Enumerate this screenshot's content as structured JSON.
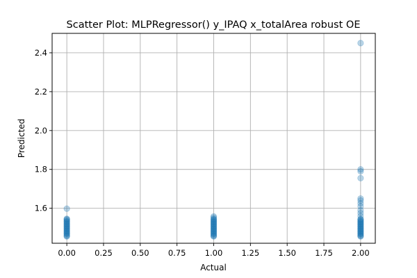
{
  "chart_data": {
    "type": "scatter",
    "title": "Scatter Plot: MLPRegressor() y_IPAQ x_totalArea robust OE",
    "xlabel": "Actual",
    "ylabel": "Predicted",
    "xlim": [
      -0.1,
      2.1
    ],
    "ylim": [
      1.42,
      2.5
    ],
    "xticks": [
      0.0,
      0.25,
      0.5,
      0.75,
      1.0,
      1.25,
      1.5,
      1.75,
      2.0
    ],
    "xtick_labels": [
      "0.00",
      "0.25",
      "0.50",
      "0.75",
      "1.00",
      "1.25",
      "1.50",
      "1.75",
      "2.00"
    ],
    "yticks": [
      1.6,
      1.8,
      2.0,
      2.2,
      2.4
    ],
    "ytick_labels": [
      "1.6",
      "1.8",
      "2.0",
      "2.2",
      "2.4"
    ],
    "grid": true,
    "marker_color": "#1f77b4",
    "marker_alpha": 0.3,
    "series": [
      {
        "points": [
          {
            "x": 0,
            "y": 1.455
          },
          {
            "x": 0,
            "y": 1.462
          },
          {
            "x": 0,
            "y": 1.468
          },
          {
            "x": 0,
            "y": 1.474
          },
          {
            "x": 0,
            "y": 1.48
          },
          {
            "x": 0,
            "y": 1.486
          },
          {
            "x": 0,
            "y": 1.492
          },
          {
            "x": 0,
            "y": 1.498
          },
          {
            "x": 0,
            "y": 1.504
          },
          {
            "x": 0,
            "y": 1.51
          },
          {
            "x": 0,
            "y": 1.516
          },
          {
            "x": 0,
            "y": 1.522
          },
          {
            "x": 0,
            "y": 1.528
          },
          {
            "x": 0,
            "y": 1.534
          },
          {
            "x": 0,
            "y": 1.54
          },
          {
            "x": 0,
            "y": 1.546
          },
          {
            "x": 0,
            "y": 1.458
          },
          {
            "x": 0,
            "y": 1.471
          },
          {
            "x": 0,
            "y": 1.483
          },
          {
            "x": 0,
            "y": 1.495
          },
          {
            "x": 0,
            "y": 1.507
          },
          {
            "x": 0,
            "y": 1.519
          },
          {
            "x": 0,
            "y": 1.531
          },
          {
            "x": 0,
            "y": 1.543
          },
          {
            "x": 0,
            "y": 1.598
          },
          {
            "x": 1,
            "y": 1.455
          },
          {
            "x": 1,
            "y": 1.461
          },
          {
            "x": 1,
            "y": 1.467
          },
          {
            "x": 1,
            "y": 1.473
          },
          {
            "x": 1,
            "y": 1.479
          },
          {
            "x": 1,
            "y": 1.485
          },
          {
            "x": 1,
            "y": 1.491
          },
          {
            "x": 1,
            "y": 1.497
          },
          {
            "x": 1,
            "y": 1.503
          },
          {
            "x": 1,
            "y": 1.509
          },
          {
            "x": 1,
            "y": 1.515
          },
          {
            "x": 1,
            "y": 1.521
          },
          {
            "x": 1,
            "y": 1.527
          },
          {
            "x": 1,
            "y": 1.533
          },
          {
            "x": 1,
            "y": 1.539
          },
          {
            "x": 1,
            "y": 1.545
          },
          {
            "x": 1,
            "y": 1.458
          },
          {
            "x": 1,
            "y": 1.47
          },
          {
            "x": 1,
            "y": 1.482
          },
          {
            "x": 1,
            "y": 1.494
          },
          {
            "x": 1,
            "y": 1.506
          },
          {
            "x": 1,
            "y": 1.518
          },
          {
            "x": 1,
            "y": 1.53
          },
          {
            "x": 1,
            "y": 1.542
          },
          {
            "x": 1,
            "y": 1.552
          },
          {
            "x": 1,
            "y": 1.558
          },
          {
            "x": 2,
            "y": 1.455
          },
          {
            "x": 2,
            "y": 1.461
          },
          {
            "x": 2,
            "y": 1.467
          },
          {
            "x": 2,
            "y": 1.473
          },
          {
            "x": 2,
            "y": 1.479
          },
          {
            "x": 2,
            "y": 1.485
          },
          {
            "x": 2,
            "y": 1.491
          },
          {
            "x": 2,
            "y": 1.497
          },
          {
            "x": 2,
            "y": 1.503
          },
          {
            "x": 2,
            "y": 1.509
          },
          {
            "x": 2,
            "y": 1.515
          },
          {
            "x": 2,
            "y": 1.521
          },
          {
            "x": 2,
            "y": 1.527
          },
          {
            "x": 2,
            "y": 1.533
          },
          {
            "x": 2,
            "y": 1.539
          },
          {
            "x": 2,
            "y": 1.545
          },
          {
            "x": 2,
            "y": 1.458
          },
          {
            "x": 2,
            "y": 1.47
          },
          {
            "x": 2,
            "y": 1.482
          },
          {
            "x": 2,
            "y": 1.494
          },
          {
            "x": 2,
            "y": 1.506
          },
          {
            "x": 2,
            "y": 1.518
          },
          {
            "x": 2,
            "y": 1.53
          },
          {
            "x": 2,
            "y": 1.542
          },
          {
            "x": 2,
            "y": 1.56
          },
          {
            "x": 2,
            "y": 1.575
          },
          {
            "x": 2,
            "y": 1.59
          },
          {
            "x": 2,
            "y": 1.61
          },
          {
            "x": 2,
            "y": 1.625
          },
          {
            "x": 2,
            "y": 1.64
          },
          {
            "x": 2,
            "y": 1.65
          },
          {
            "x": 2,
            "y": 1.755
          },
          {
            "x": 2,
            "y": 1.79
          },
          {
            "x": 2,
            "y": 1.8
          },
          {
            "x": 2,
            "y": 2.45
          }
        ]
      }
    ]
  }
}
